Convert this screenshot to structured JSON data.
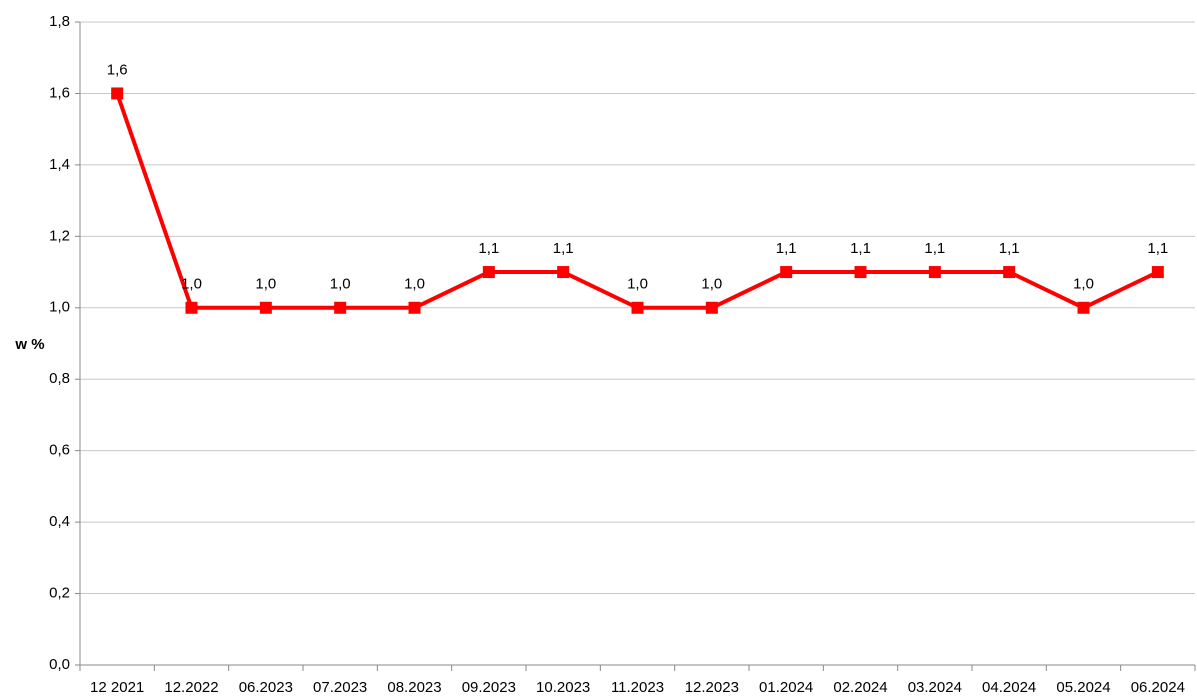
{
  "chart_data": {
    "type": "line",
    "y_label": "w %",
    "categories": [
      "12 2021",
      "12.2022",
      "06.2023",
      "07.2023",
      "08.2023",
      "09.2023",
      "10.2023",
      "11.2023",
      "12.2023",
      "01.2024",
      "02.2024",
      "03.2024",
      "04.2024",
      "05.2024",
      "06.2024"
    ],
    "values": [
      1.6,
      1.0,
      1.0,
      1.0,
      1.0,
      1.1,
      1.1,
      1.0,
      1.0,
      1.1,
      1.1,
      1.1,
      1.1,
      1.0,
      1.1
    ],
    "value_labels": [
      "1,6",
      "1,0",
      "1,0",
      "1,0",
      "1,0",
      "1,1",
      "1,1",
      "1,0",
      "1,0",
      "1,1",
      "1,1",
      "1,1",
      "1,1",
      "1,0",
      "1,1"
    ],
    "color": "#ff0000",
    "ylim": [
      0,
      1.8
    ],
    "yticks": [
      {
        "value": 0,
        "label": "0,0"
      },
      {
        "value": 0.2,
        "label": "0,2"
      },
      {
        "value": 0.4,
        "label": "0,4"
      },
      {
        "value": 0.6,
        "label": "0,6"
      },
      {
        "value": 0.8,
        "label": "0,8"
      },
      {
        "value": 1.0,
        "label": "1,0"
      },
      {
        "value": 1.2,
        "label": "1,2"
      },
      {
        "value": 1.4,
        "label": "1,4"
      },
      {
        "value": 1.6,
        "label": "1,6"
      },
      {
        "value": 1.8,
        "label": "1,8"
      }
    ],
    "grid": true
  }
}
